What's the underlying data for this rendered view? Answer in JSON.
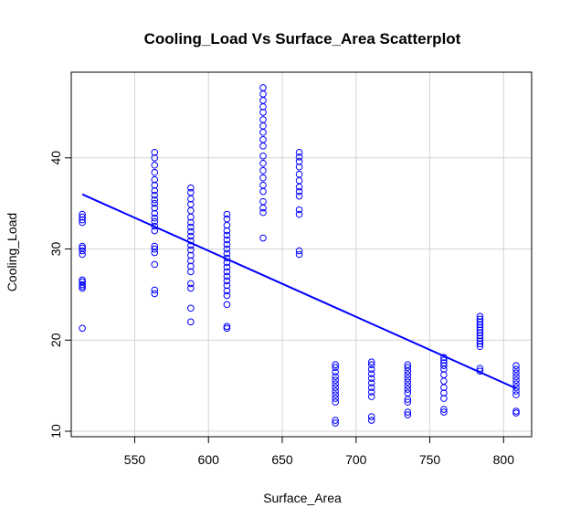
{
  "chart_data": {
    "type": "scatter",
    "title": "Cooling_Load Vs Surface_Area Scatterplot",
    "xlabel": "Surface_Area",
    "ylabel": "Cooling_Load",
    "xlim": [
      507,
      819
    ],
    "ylim": [
      9.4,
      49.4
    ],
    "xticks": [
      550,
      600,
      650,
      700,
      750,
      800
    ],
    "yticks": [
      10,
      20,
      30,
      40
    ],
    "grid": true,
    "colors": {
      "points": "#0000ff",
      "fit_line": "#0000ff",
      "grid": "#d3d3d3",
      "frame": "#000000"
    },
    "fit_line": {
      "x": [
        514.5,
        808.5
      ],
      "y": [
        36.0,
        14.7
      ]
    },
    "series": [
      {
        "points": [
          [
            514.5,
            21.3
          ],
          [
            514.5,
            25.7
          ],
          [
            514.5,
            25.9
          ],
          [
            514.5,
            26.1
          ],
          [
            514.5,
            26.4
          ],
          [
            514.5,
            26.6
          ],
          [
            514.5,
            29.4
          ],
          [
            514.5,
            29.8
          ],
          [
            514.5,
            30.1
          ],
          [
            514.5,
            30.3
          ],
          [
            514.5,
            32.9
          ],
          [
            514.5,
            33.2
          ],
          [
            514.5,
            33.5
          ],
          [
            514.5,
            33.8
          ],
          [
            563.5,
            25.1
          ],
          [
            563.5,
            25.5
          ],
          [
            563.5,
            28.3
          ],
          [
            563.5,
            29.6
          ],
          [
            563.5,
            30.0
          ],
          [
            563.5,
            30.3
          ],
          [
            563.5,
            32.0
          ],
          [
            563.5,
            32.5
          ],
          [
            563.5,
            33.0
          ],
          [
            563.5,
            33.4
          ],
          [
            563.5,
            33.9
          ],
          [
            563.5,
            34.5
          ],
          [
            563.5,
            35.0
          ],
          [
            563.5,
            35.4
          ],
          [
            563.5,
            35.9
          ],
          [
            563.5,
            36.4
          ],
          [
            563.5,
            37.0
          ],
          [
            563.5,
            37.6
          ],
          [
            563.5,
            38.4
          ],
          [
            563.5,
            39.2
          ],
          [
            563.5,
            40.0
          ],
          [
            563.5,
            40.6
          ],
          [
            588.0,
            22.0
          ],
          [
            588.0,
            23.5
          ],
          [
            588.0,
            25.7
          ],
          [
            588.0,
            26.2
          ],
          [
            588.0,
            27.5
          ],
          [
            588.0,
            28.1
          ],
          [
            588.0,
            28.7
          ],
          [
            588.0,
            29.3
          ],
          [
            588.0,
            29.9
          ],
          [
            588.0,
            30.4
          ],
          [
            588.0,
            30.9
          ],
          [
            588.0,
            31.4
          ],
          [
            588.0,
            31.9
          ],
          [
            588.0,
            32.4
          ],
          [
            588.0,
            32.9
          ],
          [
            588.0,
            33.5
          ],
          [
            588.0,
            34.2
          ],
          [
            588.0,
            34.9
          ],
          [
            588.0,
            35.5
          ],
          [
            588.0,
            36.2
          ],
          [
            588.0,
            36.7
          ],
          [
            612.5,
            21.3
          ],
          [
            612.5,
            21.5
          ],
          [
            612.5,
            23.9
          ],
          [
            612.5,
            24.9
          ],
          [
            612.5,
            25.4
          ],
          [
            612.5,
            26.0
          ],
          [
            612.5,
            26.5
          ],
          [
            612.5,
            27.0
          ],
          [
            612.5,
            27.5
          ],
          [
            612.5,
            28.0
          ],
          [
            612.5,
            28.5
          ],
          [
            612.5,
            29.0
          ],
          [
            612.5,
            29.5
          ],
          [
            612.5,
            30.0
          ],
          [
            612.5,
            30.5
          ],
          [
            612.5,
            31.0
          ],
          [
            612.5,
            31.5
          ],
          [
            612.5,
            32.0
          ],
          [
            612.5,
            32.6
          ],
          [
            612.5,
            33.3
          ],
          [
            612.5,
            33.8
          ],
          [
            637.0,
            31.2
          ],
          [
            637.0,
            34.0
          ],
          [
            637.0,
            34.5
          ],
          [
            637.0,
            35.2
          ],
          [
            637.0,
            36.3
          ],
          [
            637.0,
            37.0
          ],
          [
            637.0,
            37.8
          ],
          [
            637.0,
            38.6
          ],
          [
            637.0,
            39.4
          ],
          [
            637.0,
            40.2
          ],
          [
            637.0,
            41.3
          ],
          [
            637.0,
            42.0
          ],
          [
            637.0,
            42.8
          ],
          [
            637.0,
            43.5
          ],
          [
            637.0,
            44.2
          ],
          [
            637.0,
            45.0
          ],
          [
            637.0,
            45.6
          ],
          [
            637.0,
            46.3
          ],
          [
            637.0,
            47.0
          ],
          [
            637.0,
            47.7
          ],
          [
            661.5,
            29.4
          ],
          [
            661.5,
            29.8
          ],
          [
            661.5,
            33.8
          ],
          [
            661.5,
            34.3
          ],
          [
            661.5,
            35.8
          ],
          [
            661.5,
            36.3
          ],
          [
            661.5,
            36.8
          ],
          [
            661.5,
            37.5
          ],
          [
            661.5,
            38.2
          ],
          [
            661.5,
            39.0
          ],
          [
            661.5,
            39.6
          ],
          [
            661.5,
            40.1
          ],
          [
            661.5,
            40.6
          ],
          [
            686.0,
            10.9
          ],
          [
            686.0,
            11.2
          ],
          [
            686.0,
            13.2
          ],
          [
            686.0,
            13.6
          ],
          [
            686.0,
            14.0
          ],
          [
            686.0,
            14.4
          ],
          [
            686.0,
            14.8
          ],
          [
            686.0,
            15.2
          ],
          [
            686.0,
            15.6
          ],
          [
            686.0,
            16.0
          ],
          [
            686.0,
            16.5
          ],
          [
            686.0,
            17.0
          ],
          [
            686.0,
            17.3
          ],
          [
            710.5,
            11.2
          ],
          [
            710.5,
            11.6
          ],
          [
            710.5,
            13.8
          ],
          [
            710.5,
            14.3
          ],
          [
            710.5,
            14.8
          ],
          [
            710.5,
            15.3
          ],
          [
            710.5,
            15.8
          ],
          [
            710.5,
            16.3
          ],
          [
            710.5,
            16.8
          ],
          [
            710.5,
            17.3
          ],
          [
            710.5,
            17.6
          ],
          [
            735.0,
            11.8
          ],
          [
            735.0,
            12.1
          ],
          [
            735.0,
            13.2
          ],
          [
            735.0,
            13.5
          ],
          [
            735.0,
            14.2
          ],
          [
            735.0,
            14.6
          ],
          [
            735.0,
            15.0
          ],
          [
            735.0,
            15.4
          ],
          [
            735.0,
            15.8
          ],
          [
            735.0,
            16.2
          ],
          [
            735.0,
            16.6
          ],
          [
            735.0,
            17.0
          ],
          [
            735.0,
            17.3
          ],
          [
            759.5,
            12.1
          ],
          [
            759.5,
            12.4
          ],
          [
            759.5,
            13.6
          ],
          [
            759.5,
            14.2
          ],
          [
            759.5,
            14.8
          ],
          [
            759.5,
            15.5
          ],
          [
            759.5,
            16.2
          ],
          [
            759.5,
            16.8
          ],
          [
            759.5,
            17.2
          ],
          [
            759.5,
            17.5
          ],
          [
            759.5,
            17.8
          ],
          [
            759.5,
            18.1
          ],
          [
            784.0,
            16.6
          ],
          [
            784.0,
            16.9
          ],
          [
            784.0,
            19.3
          ],
          [
            784.0,
            19.6
          ],
          [
            784.0,
            19.9
          ],
          [
            784.0,
            20.2
          ],
          [
            784.0,
            20.5
          ],
          [
            784.0,
            20.8
          ],
          [
            784.0,
            21.1
          ],
          [
            784.0,
            21.4
          ],
          [
            784.0,
            21.7
          ],
          [
            784.0,
            22.0
          ],
          [
            784.0,
            22.3
          ],
          [
            784.0,
            22.6
          ],
          [
            808.5,
            12.0
          ],
          [
            808.5,
            12.2
          ],
          [
            808.5,
            14.0
          ],
          [
            808.5,
            14.4
          ],
          [
            808.5,
            14.8
          ],
          [
            808.5,
            15.2
          ],
          [
            808.5,
            15.6
          ],
          [
            808.5,
            16.0
          ],
          [
            808.5,
            16.4
          ],
          [
            808.5,
            16.8
          ],
          [
            808.5,
            17.2
          ]
        ]
      }
    ]
  }
}
